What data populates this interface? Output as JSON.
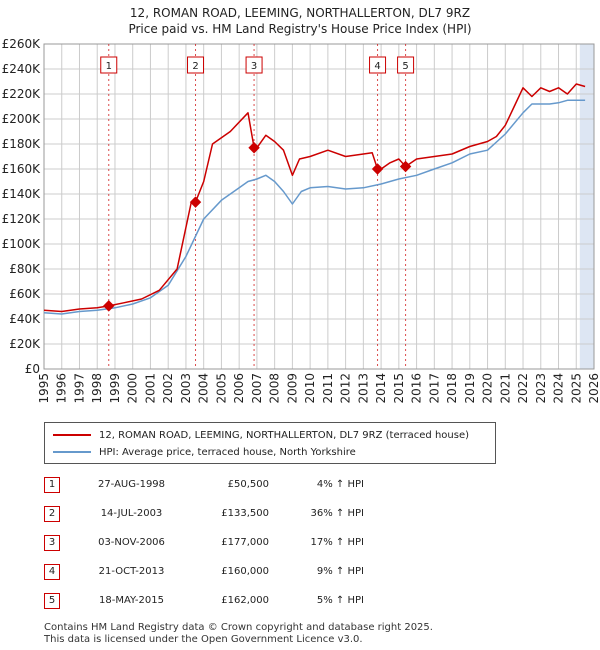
{
  "title_line1": "12, ROMAN ROAD, LEEMING, NORTHALLERTON, DL7 9RZ",
  "title_line2": "Price paid vs. HM Land Registry's House Price Index (HPI)",
  "colors": {
    "property": "#cc0000",
    "hpi": "#6699cc",
    "band": "#dde6f3",
    "grid": "#cccccc",
    "marker_line": "#cc0000"
  },
  "chart_data": {
    "type": "line",
    "xlim": [
      1995,
      2026
    ],
    "ylim": [
      0,
      260000
    ],
    "yticks": [
      0,
      20000,
      40000,
      60000,
      80000,
      100000,
      120000,
      140000,
      160000,
      180000,
      200000,
      220000,
      240000,
      260000
    ],
    "ytick_labels": [
      "£0",
      "£20K",
      "£40K",
      "£60K",
      "£80K",
      "£100K",
      "£120K",
      "£140K",
      "£160K",
      "£180K",
      "£200K",
      "£220K",
      "£240K",
      "£260K"
    ],
    "xticks": [
      1995,
      1996,
      1997,
      1998,
      1999,
      2000,
      2001,
      2002,
      2003,
      2004,
      2005,
      2006,
      2007,
      2008,
      2009,
      2010,
      2011,
      2012,
      2013,
      2014,
      2015,
      2016,
      2017,
      2018,
      2019,
      2020,
      2021,
      2022,
      2023,
      2024,
      2025,
      2026
    ],
    "shaded_from": 2025.2,
    "series": [
      {
        "name": "12, ROMAN ROAD, LEEMING, NORTHALLERTON, DL7 9RZ (terraced house)",
        "color": "#cc0000",
        "x": [
          1995.0,
          1996.0,
          1997.0,
          1998.0,
          1998.65,
          1999.5,
          2000.5,
          2001.5,
          2002.5,
          2003.3,
          2003.54,
          2004.0,
          2004.5,
          2005.5,
          2006.5,
          2006.84,
          2007.0,
          2007.5,
          2008.0,
          2008.5,
          2009.0,
          2009.4,
          2010.0,
          2011.0,
          2012.0,
          2013.0,
          2013.5,
          2013.8,
          2014.0,
          2014.5,
          2015.0,
          2015.38,
          2016.0,
          2017.0,
          2018.0,
          2019.0,
          2020.0,
          2020.5,
          2021.0,
          2021.5,
          2022.0,
          2022.5,
          2023.0,
          2023.5,
          2024.0,
          2024.5,
          2025.0,
          2025.5
        ],
        "y": [
          47000,
          46000,
          48000,
          49000,
          50500,
          53000,
          56000,
          63000,
          80000,
          133500,
          133500,
          150000,
          180000,
          190000,
          205000,
          177000,
          177000,
          187000,
          182000,
          175000,
          155000,
          168000,
          170000,
          175000,
          170000,
          172000,
          173000,
          160000,
          160000,
          165000,
          168000,
          162000,
          168000,
          170000,
          172000,
          178000,
          182000,
          186000,
          195000,
          210000,
          225000,
          218000,
          225000,
          222000,
          225000,
          220000,
          228000,
          226000
        ]
      },
      {
        "name": "HPI: Average price, terraced house, North Yorkshire",
        "color": "#6699cc",
        "x": [
          1995.0,
          1996.0,
          1997.0,
          1998.0,
          1999.0,
          2000.0,
          2001.0,
          2002.0,
          2003.0,
          2004.0,
          2005.0,
          2006.0,
          2006.5,
          2007.0,
          2007.5,
          2008.0,
          2008.5,
          2009.0,
          2009.5,
          2010.0,
          2011.0,
          2012.0,
          2013.0,
          2014.0,
          2015.0,
          2016.0,
          2017.0,
          2018.0,
          2019.0,
          2020.0,
          2021.0,
          2022.0,
          2022.5,
          2023.0,
          2023.5,
          2024.0,
          2024.5,
          2025.0,
          2025.5
        ],
        "y": [
          45000,
          44000,
          46000,
          47000,
          49000,
          52000,
          57000,
          67000,
          90000,
          120000,
          135000,
          145000,
          150000,
          152000,
          155000,
          150000,
          142000,
          132000,
          142000,
          145000,
          146000,
          144000,
          145000,
          148000,
          152000,
          155000,
          160000,
          165000,
          172000,
          175000,
          188000,
          205000,
          212000,
          212000,
          212000,
          213000,
          215000,
          215000,
          215000
        ]
      }
    ],
    "sales": [
      {
        "n": "1",
        "x": 1998.65,
        "y": 50500
      },
      {
        "n": "2",
        "x": 2003.54,
        "y": 133500
      },
      {
        "n": "3",
        "x": 2006.84,
        "y": 177000
      },
      {
        "n": "4",
        "x": 2013.8,
        "y": 160000
      },
      {
        "n": "5",
        "x": 2015.38,
        "y": 162000
      }
    ]
  },
  "legend": {
    "property": "12, ROMAN ROAD, LEEMING, NORTHALLERTON, DL7 9RZ (terraced house)",
    "hpi": "HPI: Average price, terraced house, North Yorkshire"
  },
  "transactions": [
    {
      "n": "1",
      "date": "27-AUG-1998",
      "price": "£50,500",
      "hpi": "4% ↑ HPI"
    },
    {
      "n": "2",
      "date": "14-JUL-2003",
      "price": "£133,500",
      "hpi": "36% ↑ HPI"
    },
    {
      "n": "3",
      "date": "03-NOV-2006",
      "price": "£177,000",
      "hpi": "17% ↑ HPI"
    },
    {
      "n": "4",
      "date": "21-OCT-2013",
      "price": "£160,000",
      "hpi": "9% ↑ HPI"
    },
    {
      "n": "5",
      "date": "18-MAY-2015",
      "price": "£162,000",
      "hpi": "5% ↑ HPI"
    }
  ],
  "footer": {
    "line1": "Contains HM Land Registry data © Crown copyright and database right 2025.",
    "line2": "This data is licensed under the Open Government Licence v3.0."
  }
}
